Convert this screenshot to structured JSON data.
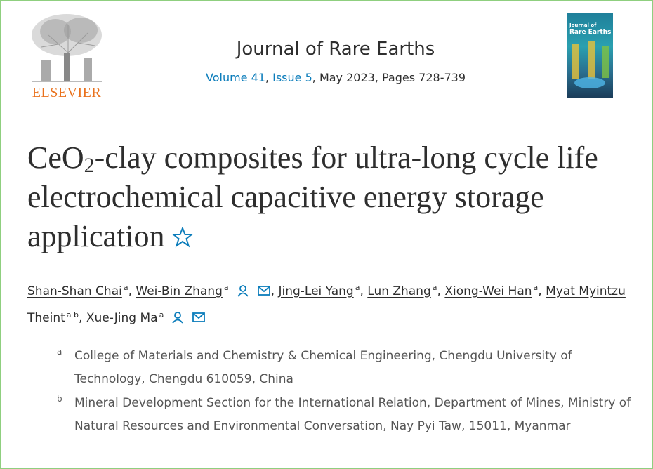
{
  "header": {
    "publisher": "ELSEVIER",
    "journal": "Journal of Rare Earths",
    "citation": [
      {
        "text": "Volume 41",
        "link": true
      },
      {
        "text": ", ",
        "link": false
      },
      {
        "text": "Issue 5",
        "link": true
      },
      {
        "text": ", May 2023, Pages 728-739",
        "link": false
      }
    ],
    "cover": {
      "line1": "Journal of",
      "line2": "Rare Earths"
    }
  },
  "article": {
    "title_parts": [
      {
        "text": "CeO",
        "sub": false
      },
      {
        "text": "2",
        "sub": true
      },
      {
        "text": "-clay composites for ultra-long cycle life electrochemical capacitive energy storage application",
        "sub": false
      }
    ],
    "authors": [
      {
        "name": "Shan-Shan Chai",
        "affiliations": [
          "a"
        ],
        "icons": false,
        "separator": ","
      },
      {
        "name": "Wei-Bin Zhang",
        "affiliations": [
          "a"
        ],
        "icons": true,
        "separator": ","
      },
      {
        "name": "Jing-Lei Yang",
        "affiliations": [
          "a"
        ],
        "icons": false,
        "separator": ","
      },
      {
        "name": "Lun Zhang",
        "affiliations": [
          "a"
        ],
        "icons": false,
        "separator": ","
      },
      {
        "name": "Xiong-Wei Han",
        "affiliations": [
          "a"
        ],
        "icons": false,
        "separator": ","
      },
      {
        "name": "Myat Myintzu Theint",
        "affiliations": [
          "a",
          "b"
        ],
        "icons": false,
        "separator": ","
      },
      {
        "name": "Xue-Jing Ma",
        "affiliations": [
          "a"
        ],
        "icons": true
      }
    ],
    "affiliations": [
      {
        "label": "a",
        "text": "College of Materials and Chemistry & Chemical Engineering, Chengdu University of Technology, Chengdu 610059, China"
      },
      {
        "label": "b",
        "text": "Mineral Development Section for the International Relation, Department of Mines, Ministry of Natural Resources and Environmental Conversation, Nay Pyi Taw, 15011, Myanmar"
      }
    ]
  }
}
